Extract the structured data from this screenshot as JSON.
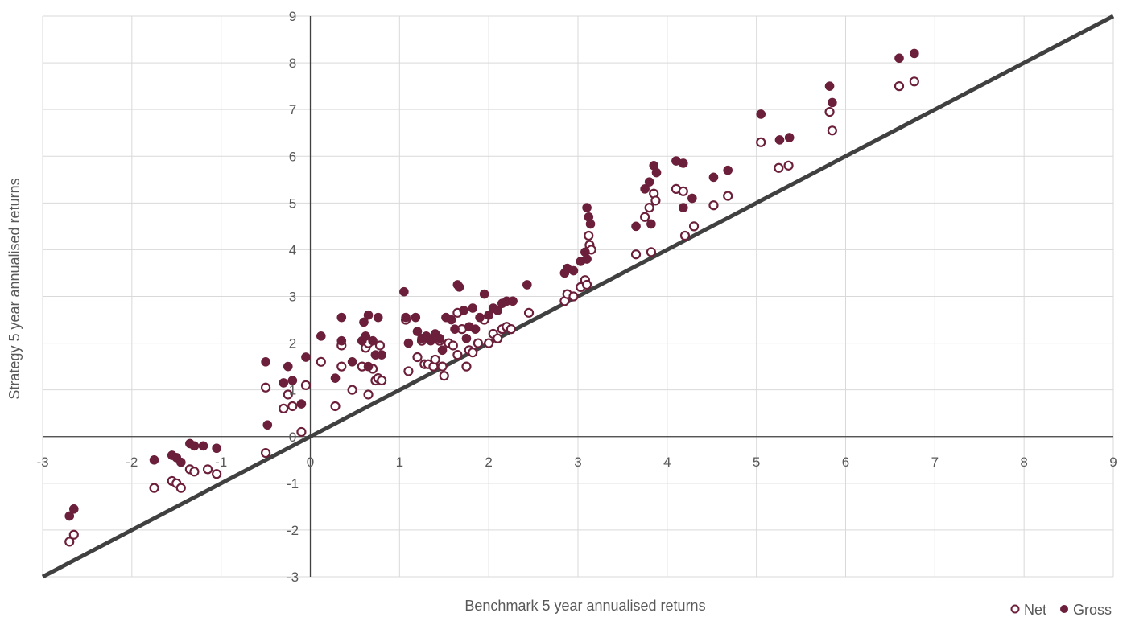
{
  "chart_data": {
    "type": "scatter",
    "title": "",
    "xlabel": "Benchmark 5 year annualised returns",
    "ylabel": "Strategy 5 year annualised returns",
    "xlim": [
      -3,
      9
    ],
    "ylim": [
      -3,
      9
    ],
    "x_ticks": [
      "-3",
      "-2",
      "-1",
      "0",
      "1",
      "2",
      "3",
      "4",
      "5",
      "6",
      "7",
      "8",
      "9"
    ],
    "y_ticks": [
      "-3",
      "-2",
      "-1",
      "0",
      "1",
      "2",
      "3",
      "4",
      "5",
      "6",
      "7",
      "8",
      "9"
    ],
    "grid": true,
    "legend_position": "bottom-right",
    "reference_line": {
      "from": [
        -3,
        -3
      ],
      "to": [
        9,
        9
      ],
      "color": "#404040"
    },
    "series": [
      {
        "name": "Net",
        "marker": "hollow-circle",
        "color": "#6b1f3a",
        "points": [
          [
            -2.7,
            -2.25
          ],
          [
            -2.65,
            -2.1
          ],
          [
            -1.75,
            -1.1
          ],
          [
            -1.55,
            -0.95
          ],
          [
            -1.5,
            -1.0
          ],
          [
            -1.45,
            -1.1
          ],
          [
            -1.35,
            -0.7
          ],
          [
            -1.3,
            -0.75
          ],
          [
            -1.15,
            -0.7
          ],
          [
            -1.05,
            -0.8
          ],
          [
            -0.5,
            1.05
          ],
          [
            -0.5,
            -0.35
          ],
          [
            -0.3,
            0.6
          ],
          [
            -0.25,
            0.9
          ],
          [
            -0.2,
            0.65
          ],
          [
            -0.1,
            0.1
          ],
          [
            -0.05,
            1.1
          ],
          [
            0.12,
            1.6
          ],
          [
            0.28,
            0.65
          ],
          [
            0.35,
            1.95
          ],
          [
            0.35,
            1.5
          ],
          [
            0.47,
            1.0
          ],
          [
            0.58,
            1.5
          ],
          [
            0.62,
            1.9
          ],
          [
            0.65,
            2.0
          ],
          [
            0.65,
            0.9
          ],
          [
            0.7,
            1.45
          ],
          [
            0.73,
            1.2
          ],
          [
            0.76,
            1.25
          ],
          [
            0.78,
            1.95
          ],
          [
            0.8,
            1.2
          ],
          [
            1.07,
            2.5
          ],
          [
            1.1,
            1.4
          ],
          [
            1.2,
            1.7
          ],
          [
            1.25,
            2.05
          ],
          [
            1.28,
            1.55
          ],
          [
            1.32,
            1.55
          ],
          [
            1.38,
            1.5
          ],
          [
            1.4,
            1.65
          ],
          [
            1.45,
            2.05
          ],
          [
            1.48,
            1.5
          ],
          [
            1.5,
            1.3
          ],
          [
            1.55,
            2.0
          ],
          [
            1.6,
            1.95
          ],
          [
            1.65,
            1.75
          ],
          [
            1.65,
            2.65
          ],
          [
            1.7,
            2.3
          ],
          [
            1.75,
            1.5
          ],
          [
            1.78,
            1.85
          ],
          [
            1.82,
            1.8
          ],
          [
            1.88,
            2.0
          ],
          [
            1.95,
            2.5
          ],
          [
            2.0,
            2.0
          ],
          [
            2.05,
            2.2
          ],
          [
            2.1,
            2.1
          ],
          [
            2.15,
            2.3
          ],
          [
            2.2,
            2.35
          ],
          [
            2.25,
            2.3
          ],
          [
            2.45,
            2.65
          ],
          [
            2.85,
            2.9
          ],
          [
            2.88,
            3.05
          ],
          [
            2.95,
            3.0
          ],
          [
            3.03,
            3.2
          ],
          [
            3.08,
            3.35
          ],
          [
            3.1,
            3.25
          ],
          [
            3.12,
            4.3
          ],
          [
            3.13,
            4.1
          ],
          [
            3.15,
            4.0
          ],
          [
            3.65,
            3.9
          ],
          [
            3.75,
            4.7
          ],
          [
            3.8,
            4.9
          ],
          [
            3.82,
            3.95
          ],
          [
            3.85,
            5.2
          ],
          [
            3.87,
            5.05
          ],
          [
            4.1,
            5.3
          ],
          [
            4.18,
            5.25
          ],
          [
            4.2,
            4.3
          ],
          [
            4.3,
            4.5
          ],
          [
            4.52,
            4.95
          ],
          [
            4.68,
            5.15
          ],
          [
            5.05,
            6.3
          ],
          [
            5.25,
            5.75
          ],
          [
            5.36,
            5.8
          ],
          [
            5.82,
            6.95
          ],
          [
            5.85,
            6.55
          ],
          [
            6.6,
            7.5
          ],
          [
            6.77,
            7.6
          ]
        ]
      },
      {
        "name": "Gross",
        "marker": "filled-circle",
        "color": "#6b1f3a",
        "points": [
          [
            -2.7,
            -1.7
          ],
          [
            -2.65,
            -1.55
          ],
          [
            -1.75,
            -0.5
          ],
          [
            -1.55,
            -0.4
          ],
          [
            -1.5,
            -0.45
          ],
          [
            -1.45,
            -0.55
          ],
          [
            -1.35,
            -0.15
          ],
          [
            -1.3,
            -0.2
          ],
          [
            -1.2,
            -0.2
          ],
          [
            -1.05,
            -0.25
          ],
          [
            -0.5,
            1.6
          ],
          [
            -0.48,
            0.25
          ],
          [
            -0.3,
            1.15
          ],
          [
            -0.25,
            1.5
          ],
          [
            -0.2,
            1.2
          ],
          [
            -0.1,
            0.7
          ],
          [
            -0.05,
            1.7
          ],
          [
            0.12,
            2.15
          ],
          [
            0.28,
            1.25
          ],
          [
            0.35,
            2.05
          ],
          [
            0.35,
            2.55
          ],
          [
            0.47,
            1.6
          ],
          [
            0.58,
            2.05
          ],
          [
            0.6,
            2.45
          ],
          [
            0.62,
            2.15
          ],
          [
            0.65,
            2.6
          ],
          [
            0.65,
            1.5
          ],
          [
            0.7,
            2.05
          ],
          [
            0.73,
            1.75
          ],
          [
            0.76,
            2.55
          ],
          [
            0.8,
            1.75
          ],
          [
            1.05,
            3.1
          ],
          [
            1.07,
            2.55
          ],
          [
            1.1,
            2.0
          ],
          [
            1.18,
            2.55
          ],
          [
            1.2,
            2.25
          ],
          [
            1.25,
            2.1
          ],
          [
            1.3,
            2.15
          ],
          [
            1.35,
            2.05
          ],
          [
            1.4,
            2.2
          ],
          [
            1.45,
            2.1
          ],
          [
            1.48,
            1.85
          ],
          [
            1.52,
            2.55
          ],
          [
            1.58,
            2.5
          ],
          [
            1.62,
            2.3
          ],
          [
            1.65,
            3.25
          ],
          [
            1.67,
            3.2
          ],
          [
            1.72,
            2.7
          ],
          [
            1.75,
            2.1
          ],
          [
            1.78,
            2.35
          ],
          [
            1.82,
            2.75
          ],
          [
            1.85,
            2.3
          ],
          [
            1.9,
            2.55
          ],
          [
            1.95,
            3.05
          ],
          [
            2.0,
            2.6
          ],
          [
            2.05,
            2.75
          ],
          [
            2.1,
            2.7
          ],
          [
            2.15,
            2.85
          ],
          [
            2.2,
            2.9
          ],
          [
            2.27,
            2.9
          ],
          [
            2.43,
            3.25
          ],
          [
            2.85,
            3.5
          ],
          [
            2.88,
            3.6
          ],
          [
            2.95,
            3.55
          ],
          [
            3.03,
            3.75
          ],
          [
            3.08,
            3.95
          ],
          [
            3.1,
            3.8
          ],
          [
            3.1,
            4.9
          ],
          [
            3.12,
            4.7
          ],
          [
            3.14,
            4.55
          ],
          [
            3.65,
            4.5
          ],
          [
            3.75,
            5.3
          ],
          [
            3.8,
            5.45
          ],
          [
            3.82,
            4.55
          ],
          [
            3.85,
            5.8
          ],
          [
            3.88,
            5.65
          ],
          [
            4.1,
            5.9
          ],
          [
            4.18,
            5.85
          ],
          [
            4.18,
            4.9
          ],
          [
            4.28,
            5.1
          ],
          [
            4.52,
            5.55
          ],
          [
            4.68,
            5.7
          ],
          [
            5.05,
            6.9
          ],
          [
            5.26,
            6.35
          ],
          [
            5.37,
            6.4
          ],
          [
            5.82,
            7.5
          ],
          [
            5.85,
            7.15
          ],
          [
            6.6,
            8.1
          ],
          [
            6.77,
            8.2
          ]
        ]
      }
    ]
  }
}
